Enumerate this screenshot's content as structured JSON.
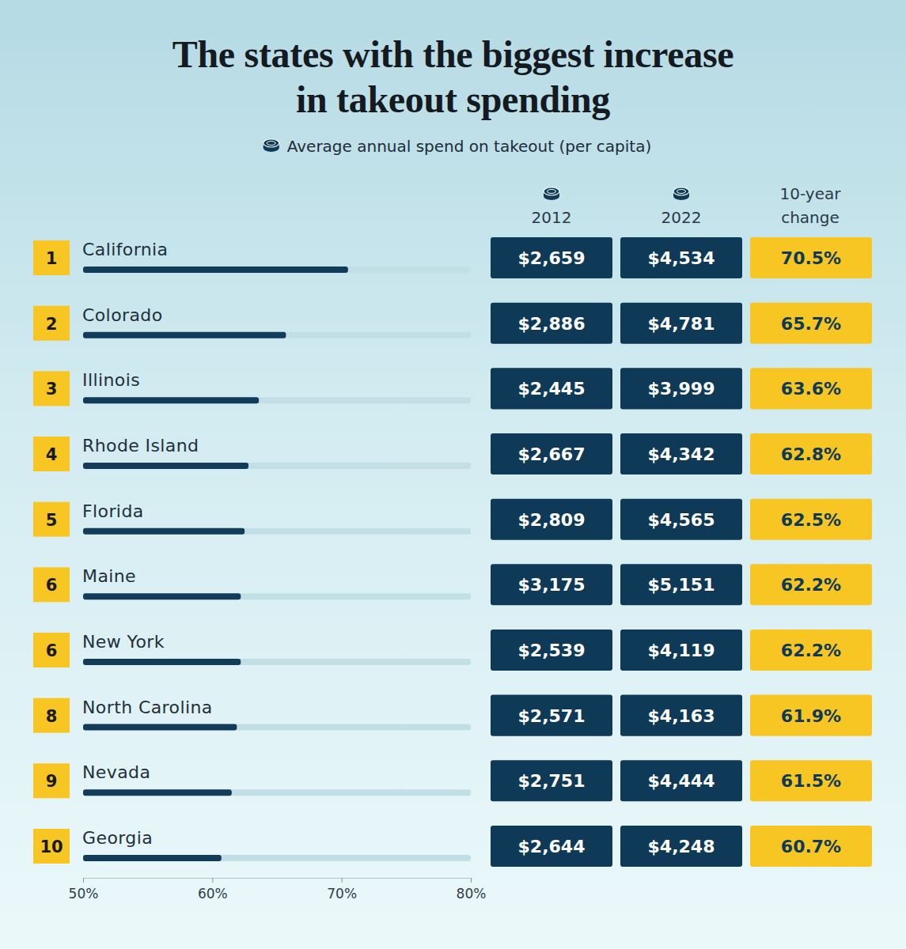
{
  "chart_data": {
    "type": "bar",
    "orientation": "horizontal",
    "title": "The states with the biggest increase in takeout spending",
    "subtitle": "Average annual spend on takeout (per capita)",
    "ranks": [
      1,
      2,
      3,
      4,
      5,
      6,
      6,
      8,
      9,
      10
    ],
    "categories": [
      "California",
      "Colorado",
      "Illinois",
      "Rhode Island",
      "Florida",
      "Maine",
      "New York",
      "North Carolina",
      "Nevada",
      "Georgia"
    ],
    "values": [
      70.5,
      65.7,
      63.6,
      62.8,
      62.5,
      62.2,
      62.2,
      61.9,
      61.5,
      60.7
    ],
    "value_labels": [
      "70.5%",
      "65.7%",
      "63.6%",
      "62.8%",
      "62.5%",
      "62.2%",
      "62.2%",
      "61.9%",
      "61.5%",
      "60.7%"
    ],
    "values_header": "10-year change",
    "data_labels": true,
    "color": "#123c5a",
    "xlim": [
      50,
      80
    ],
    "xticks": [
      {
        "value": 50,
        "label": "50%"
      },
      {
        "value": 60,
        "label": "60%"
      },
      {
        "value": 70,
        "label": "70%"
      },
      {
        "value": 80,
        "label": "80%"
      }
    ],
    "spend_2012": {
      "header": "2012",
      "cells": [
        "$2,659",
        "$2,886",
        "$2,445",
        "$2,667",
        "$2,809",
        "$3,175",
        "$2,539",
        "$2,571",
        "$2,751",
        "$2,644"
      ]
    },
    "spend_2022": {
      "header": "2022",
      "cells": [
        "$4,534",
        "$4,781",
        "$3,999",
        "$4,342",
        "$4,565",
        "$5,151",
        "$4,119",
        "$4,163",
        "$4,444",
        "$4,248"
      ]
    }
  }
}
